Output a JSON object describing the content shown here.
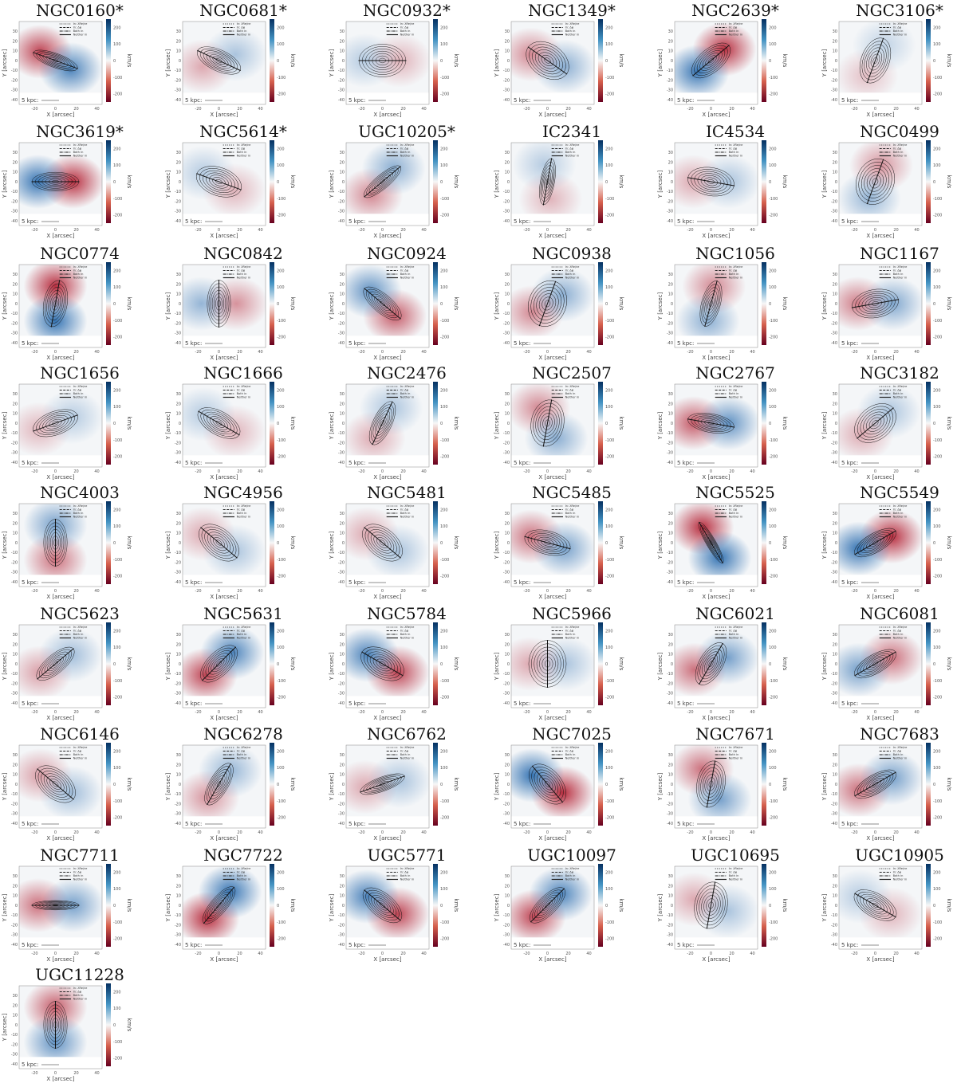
{
  "figure": {
    "common": {
      "x_label": "X [arcsec]",
      "y_label": "Y [arcsec]",
      "cbar_label": "km/s",
      "x_ticks": [
        -20,
        0,
        20,
        40
      ],
      "y_ticks": [
        30,
        20,
        10,
        0,
        -10,
        -20,
        -30,
        -40
      ],
      "cbar_ticks": [
        200,
        100,
        0,
        -100,
        -200
      ],
      "scale_label": "5 kpc:",
      "legend": [
        "In: λRe/εe",
        "In: Δφ",
        "Both in",
        "Neither in"
      ],
      "colors": {
        "red": "#b2182b",
        "blue": "#2166ac",
        "mid": "#f7f7f7"
      }
    }
  },
  "chart_data": {
    "type": "heatmap",
    "description_units": "velocity maps, km/s, range [-250, 250]",
    "panels": [
      {
        "name": "NGC0160*",
        "red_angle": 150,
        "amp": 0.8,
        "pa": 160,
        "q": 0.3
      },
      {
        "name": "NGC0681*",
        "red_angle": 200,
        "amp": 0.35,
        "pa": 155,
        "q": 0.45
      },
      {
        "name": "NGC0932*",
        "red_angle": 0,
        "amp": 0.3,
        "pa": 0,
        "q": 0.7
      },
      {
        "name": "NGC1349*",
        "red_angle": 160,
        "amp": 0.5,
        "pa": 145,
        "q": 0.7
      },
      {
        "name": "NGC2639*",
        "red_angle": 40,
        "amp": 0.9,
        "pa": 40,
        "q": 0.5
      },
      {
        "name": "NGC3106*",
        "red_angle": 240,
        "amp": 0.25,
        "pa": 70,
        "q": 0.6
      },
      {
        "name": "NGC3619*",
        "red_angle": 0,
        "amp": 0.9,
        "pa": 0,
        "q": 0.4
      },
      {
        "name": "NGC5614*",
        "red_angle": 330,
        "amp": 0.3,
        "pa": 160,
        "q": 0.6
      },
      {
        "name": "UGC10205*",
        "red_angle": 230,
        "amp": 0.5,
        "pa": 40,
        "q": 0.3
      },
      {
        "name": "IC2341",
        "red_angle": 280,
        "amp": 0.3,
        "pa": 80,
        "q": 0.3
      },
      {
        "name": "IC4534",
        "red_angle": 180,
        "amp": 0.35,
        "pa": 170,
        "q": 0.6
      },
      {
        "name": "NGC0499",
        "red_angle": 70,
        "amp": 0.45,
        "pa": 70,
        "q": 0.8
      },
      {
        "name": "NGC0774",
        "red_angle": 90,
        "amp": 0.9,
        "pa": 80,
        "q": 0.5
      },
      {
        "name": "NGC0842",
        "red_angle": 0,
        "amp": 0.45,
        "pa": 90,
        "q": 0.5
      },
      {
        "name": "NGC0924",
        "red_angle": 315,
        "amp": 0.7,
        "pa": 140,
        "q": 0.4
      },
      {
        "name": "NGC0938",
        "red_angle": 210,
        "amp": 0.5,
        "pa": 70,
        "q": 0.8
      },
      {
        "name": "NGC1056",
        "red_angle": 80,
        "amp": 0.5,
        "pa": 75,
        "q": 0.4
      },
      {
        "name": "NGC1167",
        "red_angle": 180,
        "amp": 0.55,
        "pa": 10,
        "q": 0.6
      },
      {
        "name": "NGC1656",
        "red_angle": 200,
        "amp": 0.3,
        "pa": 20,
        "q": 0.5
      },
      {
        "name": "NGC1666",
        "red_angle": 330,
        "amp": 0.3,
        "pa": 150,
        "q": 0.5
      },
      {
        "name": "NGC2476",
        "red_angle": 240,
        "amp": 0.35,
        "pa": 65,
        "q": 0.4
      },
      {
        "name": "NGC2507",
        "red_angle": 120,
        "amp": 0.5,
        "pa": 80,
        "q": 0.7
      },
      {
        "name": "NGC2767",
        "red_angle": 180,
        "amp": 0.7,
        "pa": 170,
        "q": 0.4
      },
      {
        "name": "NGC3182",
        "red_angle": 220,
        "amp": 0.35,
        "pa": 40,
        "q": 0.7
      },
      {
        "name": "NGC4003",
        "red_angle": 270,
        "amp": 0.6,
        "pa": 90,
        "q": 0.5
      },
      {
        "name": "NGC4956",
        "red_angle": 150,
        "amp": 0.35,
        "pa": 140,
        "q": 0.6
      },
      {
        "name": "NGC5481",
        "red_angle": 150,
        "amp": 0.35,
        "pa": 140,
        "q": 0.6
      },
      {
        "name": "NGC5485",
        "red_angle": 160,
        "amp": 0.6,
        "pa": 165,
        "q": 0.5
      },
      {
        "name": "NGC5525",
        "red_angle": 120,
        "amp": 0.9,
        "pa": 120,
        "q": 0.2
      },
      {
        "name": "NGC5549",
        "red_angle": 20,
        "amp": 0.9,
        "pa": 30,
        "q": 0.4
      },
      {
        "name": "NGC5623",
        "red_angle": 210,
        "amp": 0.4,
        "pa": 40,
        "q": 0.4
      },
      {
        "name": "NGC5631",
        "red_angle": 220,
        "amp": 0.8,
        "pa": 45,
        "q": 0.5
      },
      {
        "name": "NGC5784",
        "red_angle": 330,
        "amp": 0.8,
        "pa": 150,
        "q": 0.6
      },
      {
        "name": "NGC5966",
        "red_angle": 180,
        "amp": 0.35,
        "pa": 90,
        "q": 0.8
      },
      {
        "name": "NGC6021",
        "red_angle": 200,
        "amp": 0.6,
        "pa": 60,
        "q": 0.5
      },
      {
        "name": "NGC6081",
        "red_angle": 20,
        "amp": 0.6,
        "pa": 30,
        "q": 0.4
      },
      {
        "name": "NGC6146",
        "red_angle": 150,
        "amp": 0.4,
        "pa": 140,
        "q": 0.6
      },
      {
        "name": "NGC6278",
        "red_angle": 230,
        "amp": 0.45,
        "pa": 60,
        "q": 0.4
      },
      {
        "name": "NGC6762",
        "red_angle": 190,
        "amp": 0.35,
        "pa": 20,
        "q": 0.3
      },
      {
        "name": "NGC7025",
        "red_angle": 330,
        "amp": 0.9,
        "pa": 130,
        "q": 0.6
      },
      {
        "name": "NGC7671",
        "red_angle": 120,
        "amp": 0.6,
        "pa": 80,
        "q": 0.6
      },
      {
        "name": "NGC7683",
        "red_angle": 200,
        "amp": 0.6,
        "pa": 30,
        "q": 0.4
      },
      {
        "name": "NGC7711",
        "red_angle": 180,
        "amp": 0.6,
        "pa": 0,
        "q": 0.2
      },
      {
        "name": "NGC7722",
        "red_angle": 230,
        "amp": 0.9,
        "pa": 50,
        "q": 0.35
      },
      {
        "name": "UGC5771",
        "red_angle": 330,
        "amp": 0.8,
        "pa": 140,
        "q": 0.5
      },
      {
        "name": "UGC10097",
        "red_angle": 220,
        "amp": 0.8,
        "pa": 45,
        "q": 0.4
      },
      {
        "name": "UGC10695",
        "red_angle": 160,
        "amp": 0.35,
        "pa": 80,
        "q": 0.7
      },
      {
        "name": "UGC10905",
        "red_angle": 330,
        "amp": 0.3,
        "pa": 150,
        "q": 0.5
      },
      {
        "name": "UGC11228",
        "red_angle": 90,
        "amp": 0.7,
        "pa": 90,
        "q": 0.5
      }
    ]
  }
}
